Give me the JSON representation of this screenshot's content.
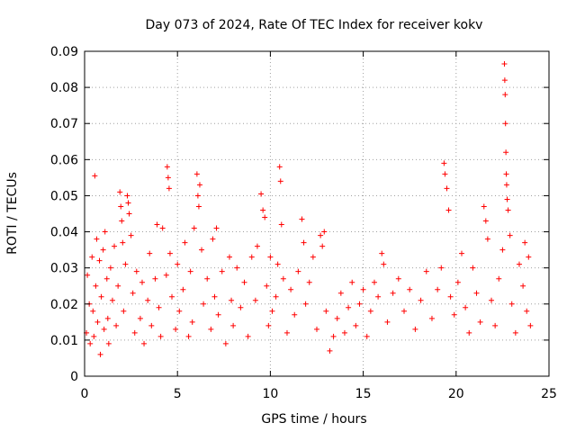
{
  "chart_data": {
    "type": "scatter",
    "title": "Day 073 of 2024, Rate Of TEC Index for receiver kokv",
    "xlabel": "GPS time / hours",
    "ylabel": "ROTI / TECUs",
    "xlim": [
      0,
      25
    ],
    "ylim": [
      0,
      0.09
    ],
    "xticks": [
      0,
      5,
      10,
      15,
      20,
      25
    ],
    "xtick_labels": [
      "0",
      "5",
      "10",
      "15",
      "20",
      "25"
    ],
    "yticks": [
      0,
      0.01,
      0.02,
      0.03,
      0.04,
      0.05,
      0.06,
      0.07,
      0.08,
      0.09
    ],
    "ytick_labels": [
      "0",
      "0.01",
      "0.02",
      "0.03",
      "0.04",
      "0.05",
      "0.06",
      "0.07",
      "0.08",
      "0.09"
    ],
    "grid": true,
    "marker": "+",
    "series": [
      {
        "name": "ROTI",
        "color": "#ff0000",
        "points": [
          [
            0.1,
            0.012
          ],
          [
            0.15,
            0.028
          ],
          [
            0.25,
            0.02
          ],
          [
            0.3,
            0.009
          ],
          [
            0.4,
            0.033
          ],
          [
            0.45,
            0.018
          ],
          [
            0.5,
            0.011
          ],
          [
            0.55,
            0.0555
          ],
          [
            0.6,
            0.025
          ],
          [
            0.65,
            0.038
          ],
          [
            0.7,
            0.015
          ],
          [
            0.8,
            0.032
          ],
          [
            0.85,
            0.006
          ],
          [
            0.9,
            0.022
          ],
          [
            1.0,
            0.035
          ],
          [
            1.05,
            0.013
          ],
          [
            1.1,
            0.04
          ],
          [
            1.2,
            0.027
          ],
          [
            1.25,
            0.016
          ],
          [
            1.3,
            0.009
          ],
          [
            1.4,
            0.03
          ],
          [
            1.5,
            0.021
          ],
          [
            1.6,
            0.036
          ],
          [
            1.7,
            0.014
          ],
          [
            1.8,
            0.025
          ],
          [
            1.9,
            0.051
          ],
          [
            1.95,
            0.047
          ],
          [
            2.0,
            0.043
          ],
          [
            2.05,
            0.037
          ],
          [
            2.1,
            0.018
          ],
          [
            2.2,
            0.031
          ],
          [
            2.3,
            0.05
          ],
          [
            2.35,
            0.048
          ],
          [
            2.4,
            0.045
          ],
          [
            2.5,
            0.039
          ],
          [
            2.6,
            0.023
          ],
          [
            2.7,
            0.012
          ],
          [
            2.8,
            0.029
          ],
          [
            3.0,
            0.016
          ],
          [
            3.1,
            0.026
          ],
          [
            3.2,
            0.009
          ],
          [
            3.4,
            0.021
          ],
          [
            3.5,
            0.034
          ],
          [
            3.6,
            0.014
          ],
          [
            3.8,
            0.027
          ],
          [
            3.9,
            0.042
          ],
          [
            4.0,
            0.019
          ],
          [
            4.1,
            0.011
          ],
          [
            4.2,
            0.041
          ],
          [
            4.4,
            0.028
          ],
          [
            4.45,
            0.058
          ],
          [
            4.5,
            0.055
          ],
          [
            4.55,
            0.052
          ],
          [
            4.6,
            0.034
          ],
          [
            4.7,
            0.022
          ],
          [
            4.9,
            0.013
          ],
          [
            5.0,
            0.031
          ],
          [
            5.1,
            0.018
          ],
          [
            5.3,
            0.024
          ],
          [
            5.4,
            0.037
          ],
          [
            5.6,
            0.011
          ],
          [
            5.7,
            0.029
          ],
          [
            5.8,
            0.015
          ],
          [
            5.9,
            0.041
          ],
          [
            6.05,
            0.056
          ],
          [
            6.1,
            0.05
          ],
          [
            6.15,
            0.047
          ],
          [
            6.2,
            0.053
          ],
          [
            6.3,
            0.035
          ],
          [
            6.4,
            0.02
          ],
          [
            6.6,
            0.027
          ],
          [
            6.8,
            0.013
          ],
          [
            6.9,
            0.038
          ],
          [
            7.0,
            0.022
          ],
          [
            7.1,
            0.041
          ],
          [
            7.2,
            0.017
          ],
          [
            7.4,
            0.029
          ],
          [
            7.6,
            0.009
          ],
          [
            7.8,
            0.033
          ],
          [
            7.9,
            0.021
          ],
          [
            8.0,
            0.014
          ],
          [
            8.2,
            0.03
          ],
          [
            8.4,
            0.019
          ],
          [
            8.6,
            0.026
          ],
          [
            8.8,
            0.011
          ],
          [
            9.0,
            0.033
          ],
          [
            9.2,
            0.021
          ],
          [
            9.3,
            0.036
          ],
          [
            9.5,
            0.0505
          ],
          [
            9.6,
            0.046
          ],
          [
            9.7,
            0.044
          ],
          [
            9.8,
            0.025
          ],
          [
            9.9,
            0.014
          ],
          [
            10.0,
            0.033
          ],
          [
            10.1,
            0.018
          ],
          [
            10.3,
            0.022
          ],
          [
            10.4,
            0.031
          ],
          [
            10.5,
            0.058
          ],
          [
            10.55,
            0.054
          ],
          [
            10.6,
            0.042
          ],
          [
            10.7,
            0.027
          ],
          [
            10.9,
            0.012
          ],
          [
            11.1,
            0.024
          ],
          [
            11.3,
            0.017
          ],
          [
            11.5,
            0.029
          ],
          [
            11.7,
            0.0435
          ],
          [
            11.8,
            0.037
          ],
          [
            11.9,
            0.02
          ],
          [
            12.1,
            0.026
          ],
          [
            12.3,
            0.033
          ],
          [
            12.5,
            0.013
          ],
          [
            12.7,
            0.039
          ],
          [
            12.8,
            0.036
          ],
          [
            12.9,
            0.04
          ],
          [
            13.0,
            0.018
          ],
          [
            13.2,
            0.007
          ],
          [
            13.4,
            0.011
          ],
          [
            13.6,
            0.016
          ],
          [
            13.8,
            0.023
          ],
          [
            14.0,
            0.012
          ],
          [
            14.2,
            0.019
          ],
          [
            14.4,
            0.026
          ],
          [
            14.6,
            0.014
          ],
          [
            14.8,
            0.02
          ],
          [
            15.0,
            0.024
          ],
          [
            15.2,
            0.011
          ],
          [
            15.4,
            0.018
          ],
          [
            15.6,
            0.026
          ],
          [
            15.8,
            0.022
          ],
          [
            16.0,
            0.034
          ],
          [
            16.1,
            0.031
          ],
          [
            16.3,
            0.015
          ],
          [
            16.6,
            0.023
          ],
          [
            16.9,
            0.027
          ],
          [
            17.2,
            0.018
          ],
          [
            17.5,
            0.024
          ],
          [
            17.8,
            0.013
          ],
          [
            18.1,
            0.021
          ],
          [
            18.4,
            0.029
          ],
          [
            18.7,
            0.016
          ],
          [
            19.0,
            0.024
          ],
          [
            19.2,
            0.03
          ],
          [
            19.35,
            0.059
          ],
          [
            19.4,
            0.056
          ],
          [
            19.5,
            0.052
          ],
          [
            19.6,
            0.046
          ],
          [
            19.7,
            0.022
          ],
          [
            19.9,
            0.017
          ],
          [
            20.1,
            0.026
          ],
          [
            20.3,
            0.034
          ],
          [
            20.5,
            0.019
          ],
          [
            20.7,
            0.012
          ],
          [
            20.9,
            0.03
          ],
          [
            21.1,
            0.023
          ],
          [
            21.3,
            0.015
          ],
          [
            21.5,
            0.047
          ],
          [
            21.6,
            0.043
          ],
          [
            21.7,
            0.038
          ],
          [
            21.9,
            0.021
          ],
          [
            22.1,
            0.014
          ],
          [
            22.3,
            0.027
          ],
          [
            22.5,
            0.035
          ],
          [
            22.6,
            0.0865
          ],
          [
            22.62,
            0.082
          ],
          [
            22.64,
            0.078
          ],
          [
            22.66,
            0.07
          ],
          [
            22.68,
            0.062
          ],
          [
            22.7,
            0.056
          ],
          [
            22.72,
            0.053
          ],
          [
            22.75,
            0.049
          ],
          [
            22.8,
            0.046
          ],
          [
            22.9,
            0.039
          ],
          [
            23.0,
            0.02
          ],
          [
            23.2,
            0.012
          ],
          [
            23.4,
            0.031
          ],
          [
            23.6,
            0.025
          ],
          [
            23.7,
            0.037
          ],
          [
            23.8,
            0.018
          ],
          [
            23.9,
            0.033
          ],
          [
            24.0,
            0.014
          ]
        ]
      }
    ]
  }
}
